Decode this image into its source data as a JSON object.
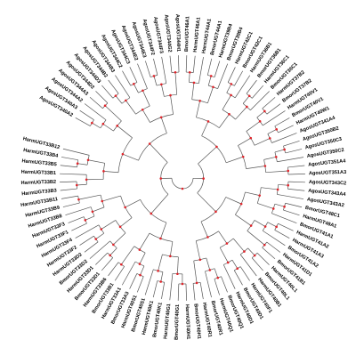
{
  "leaves": [
    "BmorUGT46A1",
    "HarmUGT46A1",
    "HarmUGT44A1",
    "BmorUGT44A1",
    "HarmUGT39B4",
    "BmorUGT39B4",
    "HarmUGT42C1",
    "BmorUGT42C1",
    "HarmUGT36B1",
    "BmorUGT36B1",
    "HarmUGT36C1",
    "BmorUGT36C1",
    "HarmUGT37B2",
    "BmorUGT37B2",
    "HarmUGT40V1",
    "BmorUGT40V1",
    "HarmUGT40W1",
    "AgosUGT341A4",
    "AgosUGT350B2",
    "AgosUGT350C3",
    "AgosUGT350C2",
    "AgosUGT351A4",
    "AgosUGT351A3",
    "AgosUGT343C2",
    "AgosUGT343A4",
    "AgosUGT343A2",
    "BmorUGT48C1",
    "HarmUGT48A1",
    "BmorUGT41A1",
    "HarmUGT41A2",
    "HarmUGT41A3",
    "BmorUGT41A2",
    "HarmUGT41D1",
    "BmorUGT41B1",
    "HarmUGT40L1",
    "BmorUGT40L1",
    "HarmUGT40B1",
    "HarmUGT40F1",
    "BmorUGT40D1",
    "HarmUGT40D1",
    "BmorUGT40Q1",
    "HarmUGT40Q1",
    "BmorUGT40R1",
    "HarmUGT40R1",
    "BmorUGT40H1",
    "HarmUGT40H1",
    "BmorUGT40G1",
    "HarmUGT40G1",
    "BmorUGT40K1",
    "HarmUGT40K1",
    "BmorUGT40S1",
    "HarmUGT40S1",
    "BmorUGT33A3",
    "HarmUGT33A1",
    "BmorUGT33B1",
    "HarmUGT33B6",
    "BmorUGT33D1",
    "HarmUGT33D1",
    "BmorUGT33D2",
    "HarmUGT33D2",
    "HarmUGT33F2",
    "HarmUGT33F4",
    "HarmUGT33F1",
    "HarmUGT33F3",
    "HarmUGT33B8",
    "HarmUGT33B9",
    "HarmUGT33B11",
    "HarmUGT33B3",
    "HarmUGT33B2",
    "HarmUGT33B1",
    "HarmUGT33B5",
    "HarmUGT33B4",
    "HarmUGT33B12",
    "AgosUGT340A2",
    "AgosUGT340A3",
    "AgosUGT344A2",
    "AgosUGT344A3",
    "AgosUGT344D2",
    "AgosUGT344D3",
    "AgosUGT344B2",
    "AgosUGT344B3",
    "AgosUGT344C2",
    "AgosUGT344C3",
    "AgosUGT344E2",
    "AgosUGT344E3",
    "AgosUGT344F2",
    "AgosUGT344F3",
    "AgosUGT344G2",
    "AgosUGT344H1"
  ]
}
